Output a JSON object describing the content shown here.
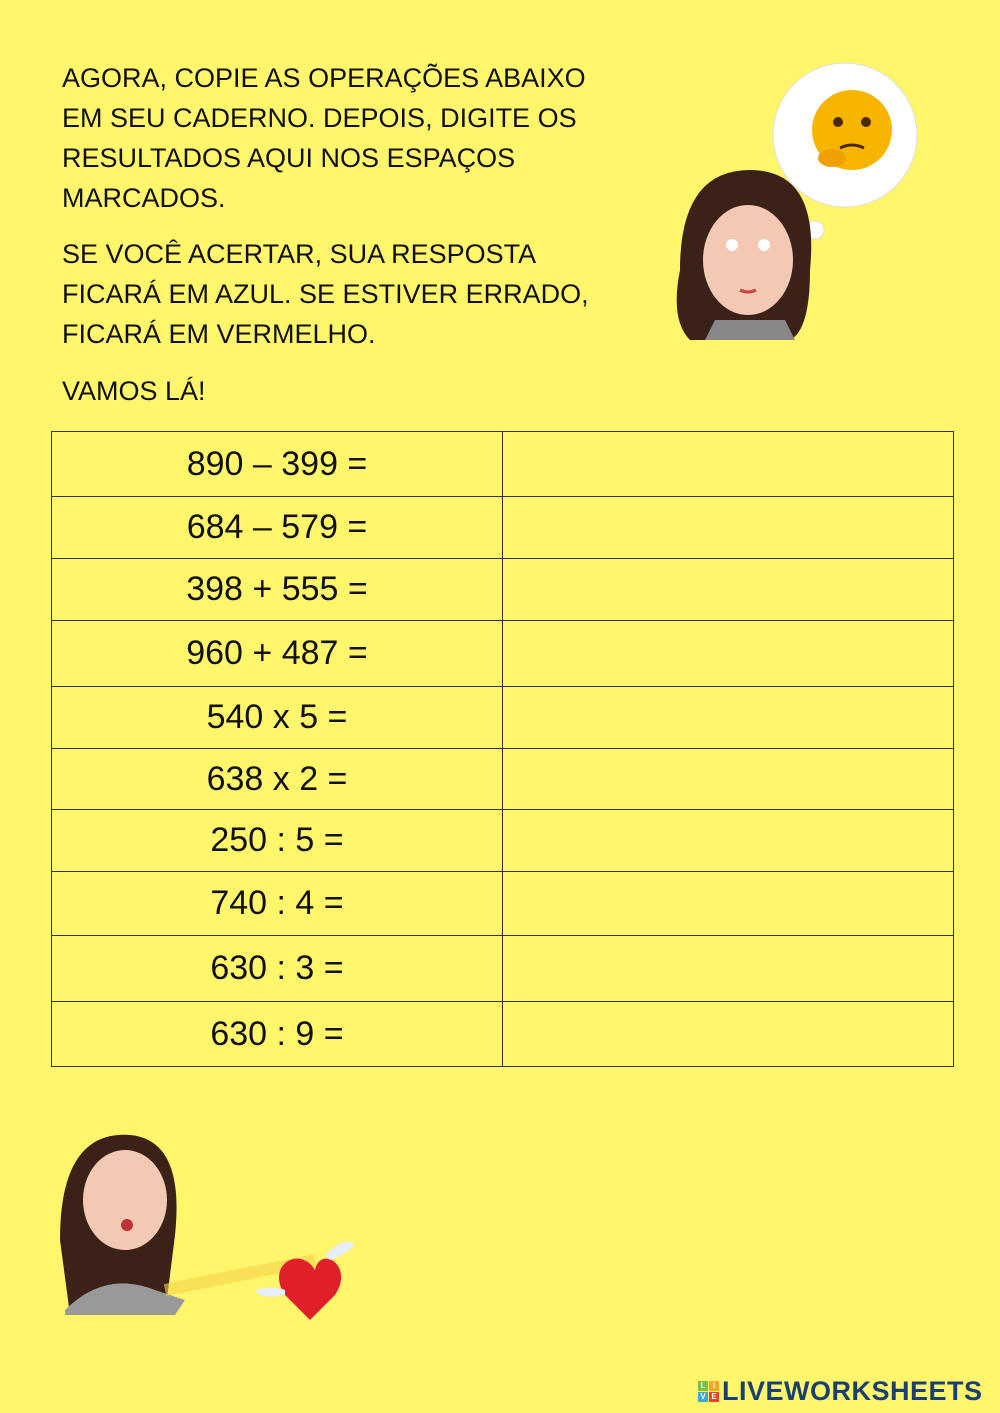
{
  "instructions": {
    "paragraph1": "AGORA, COPIE AS OPERAÇÕES ABAIXO EM SEU CADERNO. DEPOIS, DIGITE OS RESULTADOS AQUI NOS ESPAÇOS MARCADOS.",
    "paragraph2": "SE VOCÊ ACERTAR, SUA RESPOSTA FICARÁ EM AZUL. SE ESTIVER ERRADO, FICARÁ EM VERMELHO.",
    "paragraph3": "VAMOS LÁ!"
  },
  "operations": [
    {
      "expression": "890 – 399 =",
      "answer": ""
    },
    {
      "expression": "684 – 579 =",
      "answer": ""
    },
    {
      "expression": "398 + 555 =",
      "answer": ""
    },
    {
      "expression": "960 + 487 =",
      "answer": ""
    },
    {
      "expression": "540 x 5 =",
      "answer": ""
    },
    {
      "expression": "638 x 2 =",
      "answer": ""
    },
    {
      "expression": "250 : 5 =",
      "answer": ""
    },
    {
      "expression": "740 : 4 =",
      "answer": ""
    },
    {
      "expression": "630 : 3 =",
      "answer": ""
    },
    {
      "expression": "630 : 9 =",
      "answer": ""
    }
  ],
  "footer": {
    "brand": "LIVEWORKSHEETS",
    "logo_letters": [
      "L",
      "I",
      "V",
      "E"
    ]
  },
  "colors": {
    "background": "#fff66c",
    "brand": "#1b3f6e"
  }
}
